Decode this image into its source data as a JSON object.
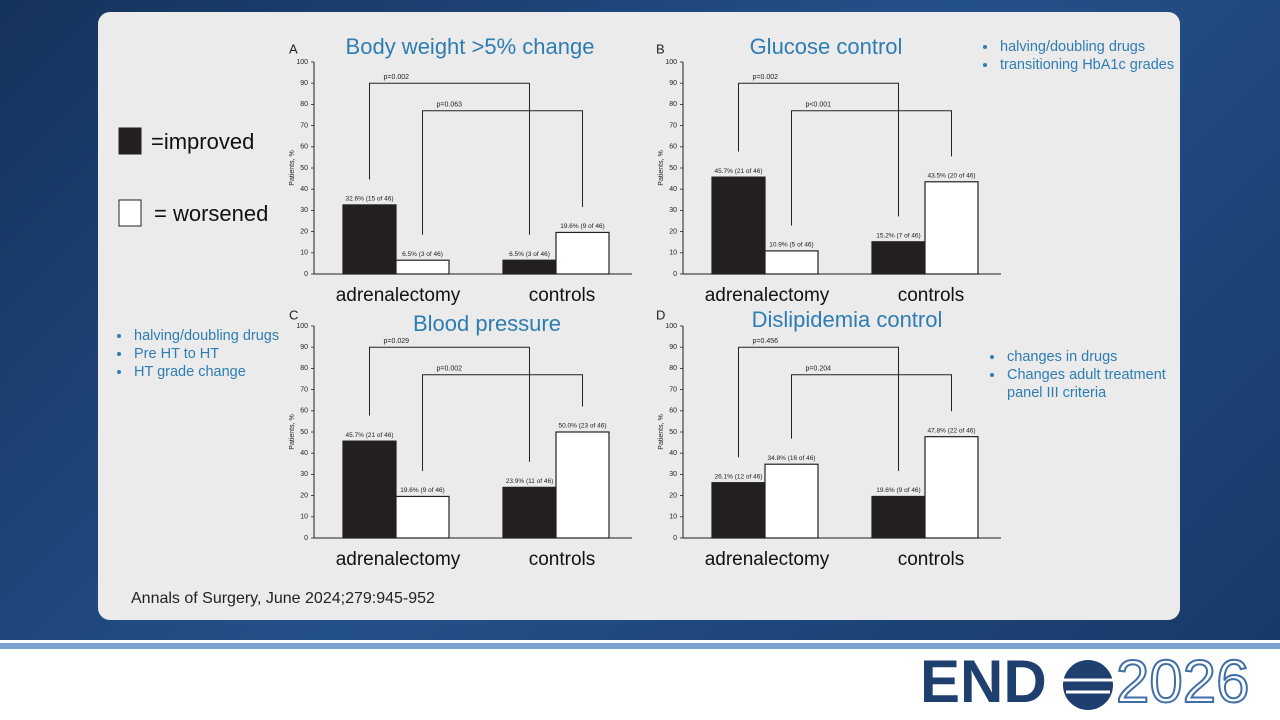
{
  "chart_data": [
    {
      "type": "bar",
      "panel": "A",
      "title": "Body weight >5% change",
      "ylabel": "Patients, %",
      "categories": [
        "adrenalectomy",
        "controls"
      ],
      "series": [
        {
          "color": "#231f20",
          "values": [
            32.6,
            6.5
          ],
          "value_labels": [
            "32.6% (15 of 46)",
            "6.5% (3 of 46)"
          ]
        },
        {
          "color": "#ffffff",
          "values": [
            6.5,
            19.6
          ],
          "value_labels": [
            "6.5% (3 of 46)",
            "19.6% (9 of 46)"
          ]
        }
      ],
      "annotations": [
        "p=0.002",
        "p=0.063"
      ],
      "ylim": [
        0,
        100
      ],
      "yticks": [
        0,
        10,
        20,
        30,
        40,
        50,
        60,
        70,
        80,
        90,
        100
      ]
    },
    {
      "type": "bar",
      "panel": "B",
      "title": "Glucose control",
      "ylabel": "Patients, %",
      "categories": [
        "adrenalectomy",
        "controls"
      ],
      "series": [
        {
          "color": "#231f20",
          "values": [
            45.7,
            15.2
          ],
          "value_labels": [
            "45.7% (21 of 46)",
            "15.2% (7 of 46)"
          ]
        },
        {
          "color": "#ffffff",
          "values": [
            10.9,
            43.5
          ],
          "value_labels": [
            "10.9% (5 of 46)",
            "43.5% (20 of 46)"
          ]
        }
      ],
      "annotations": [
        "p=0.002",
        "p<0.001"
      ],
      "ylim": [
        0,
        100
      ],
      "yticks": [
        0,
        10,
        20,
        30,
        40,
        50,
        60,
        70,
        80,
        90,
        100
      ]
    },
    {
      "type": "bar",
      "panel": "C",
      "title": "Blood pressure",
      "ylabel": "Patients, %",
      "categories": [
        "adrenalectomy",
        "controls"
      ],
      "series": [
        {
          "color": "#231f20",
          "values": [
            45.7,
            23.9
          ],
          "value_labels": [
            "45.7% (21 of 46)",
            "23.9% (11 of 46)"
          ]
        },
        {
          "color": "#ffffff",
          "values": [
            19.6,
            50.0
          ],
          "value_labels": [
            "19.6% (9 of 46)",
            "50.0% (23 of 46)"
          ]
        }
      ],
      "annotations": [
        "p=0.029",
        "p=0.002"
      ],
      "ylim": [
        0,
        100
      ],
      "yticks": [
        0,
        10,
        20,
        30,
        40,
        50,
        60,
        70,
        80,
        90,
        100
      ]
    },
    {
      "type": "bar",
      "panel": "D",
      "title": "Dislipidemia control",
      "ylabel": "Patients, %",
      "categories": [
        "adrenalectomy",
        "controls"
      ],
      "series": [
        {
          "color": "#231f20",
          "values": [
            26.1,
            19.6
          ],
          "value_labels": [
            "26.1% (12 of 46)",
            "19.6% (9 of 46)"
          ]
        },
        {
          "color": "#ffffff",
          "values": [
            34.8,
            47.8
          ],
          "value_labels": [
            "34.8% (16 of 46)",
            "47.8% (22 of 46)"
          ]
        }
      ],
      "annotations": [
        "p=0.456",
        "p=0.204"
      ],
      "ylim": [
        0,
        100
      ],
      "yticks": [
        0,
        10,
        20,
        30,
        40,
        50,
        60,
        70,
        80,
        90,
        100
      ]
    }
  ],
  "legend": [
    {
      "label": "=improved",
      "color": "#231f20"
    },
    {
      "label": "= worsened",
      "color": "#ffffff"
    }
  ],
  "notes": [
    [
      "halving/doubling drugs",
      "transitioning HbA1c grades"
    ],
    [
      "halving/doubling drugs",
      "Pre HT to HT",
      "HT grade change"
    ],
    [
      "changes in drugs",
      "Changes adult treatment panel III criteria"
    ]
  ],
  "citation": "Annals of Surgery, June 2024;279:945-952",
  "logo": {
    "left": "END",
    "right": "2026"
  }
}
